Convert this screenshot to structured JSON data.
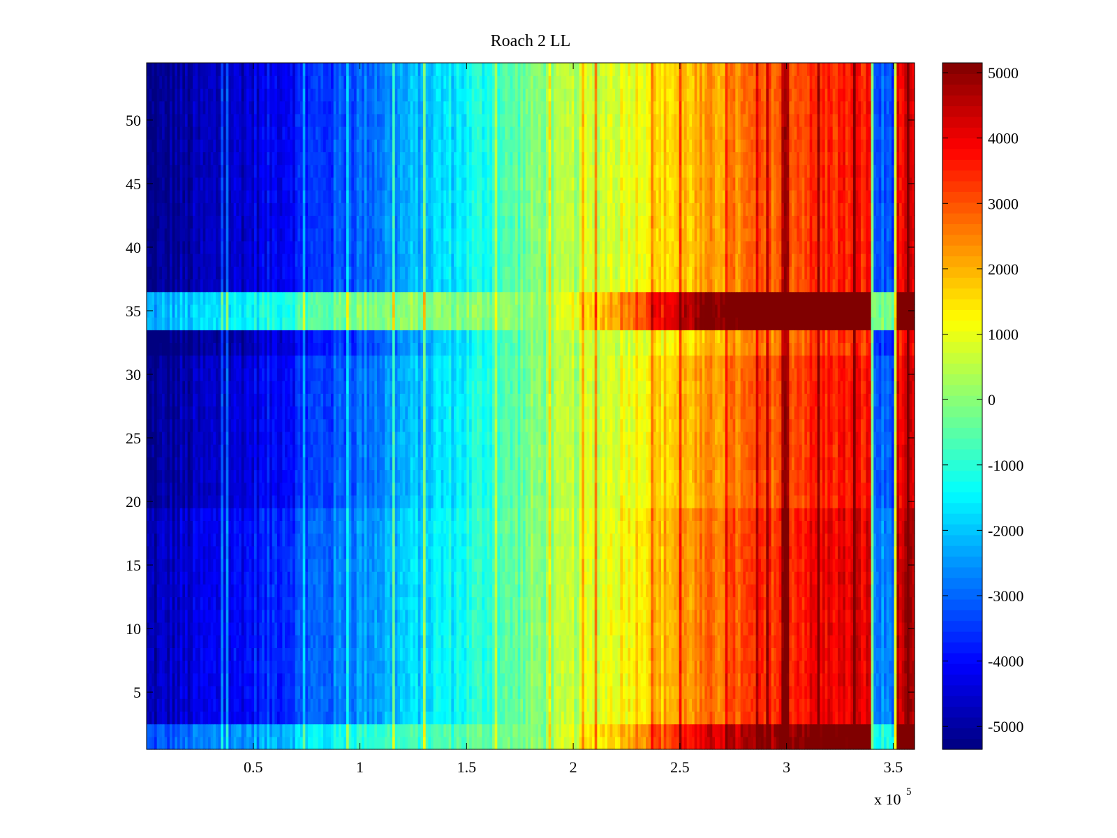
{
  "chart_data": {
    "type": "heatmap",
    "title": "Roach 2 LL",
    "xlabel": "",
    "ylabel": "",
    "x_multiplier_label": "x 10",
    "x_multiplier_exponent": "5",
    "x_range": [
      0,
      360000
    ],
    "y_range": [
      0.5,
      54.5
    ],
    "rows": 54,
    "x_ticks": [
      {
        "value": 50000,
        "label": "0.5"
      },
      {
        "value": 100000,
        "label": "1"
      },
      {
        "value": 150000,
        "label": "1.5"
      },
      {
        "value": 200000,
        "label": "2"
      },
      {
        "value": 250000,
        "label": "2.5"
      },
      {
        "value": 300000,
        "label": "3"
      },
      {
        "value": 350000,
        "label": "3.5"
      }
    ],
    "y_ticks": [
      {
        "value": 5,
        "label": "5"
      },
      {
        "value": 10,
        "label": "10"
      },
      {
        "value": 15,
        "label": "15"
      },
      {
        "value": 20,
        "label": "20"
      },
      {
        "value": 25,
        "label": "25"
      },
      {
        "value": 30,
        "label": "30"
      },
      {
        "value": 35,
        "label": "35"
      },
      {
        "value": 40,
        "label": "40"
      },
      {
        "value": 45,
        "label": "45"
      },
      {
        "value": 50,
        "label": "50"
      }
    ],
    "colorbar": {
      "colormap": "jet",
      "range": [
        -5350,
        5150
      ],
      "ticks": [
        {
          "value": 5000,
          "label": "5000"
        },
        {
          "value": 4000,
          "label": "4000"
        },
        {
          "value": 3000,
          "label": "3000"
        },
        {
          "value": 2000,
          "label": "2000"
        },
        {
          "value": 1000,
          "label": "1000"
        },
        {
          "value": 0,
          "label": "0"
        },
        {
          "value": -1000,
          "label": "-1000"
        },
        {
          "value": -2000,
          "label": "-2000"
        },
        {
          "value": -3000,
          "label": "-3000"
        },
        {
          "value": -4000,
          "label": "-4000"
        },
        {
          "value": -5000,
          "label": "-5000"
        }
      ]
    },
    "trend_profile": [
      [
        0,
        -4900
      ],
      [
        20000,
        -4500
      ],
      [
        50000,
        -3900
      ],
      [
        100000,
        -2500
      ],
      [
        150000,
        -1200
      ],
      [
        200000,
        500
      ],
      [
        250000,
        2200
      ],
      [
        300000,
        3600
      ],
      [
        320000,
        4000
      ],
      [
        339000,
        4100
      ],
      [
        341000,
        -2700
      ],
      [
        350000,
        -2700
      ],
      [
        352000,
        4400
      ],
      [
        360000,
        4400
      ]
    ],
    "row_groups": [
      {
        "rows": [
          1,
          2
        ],
        "offset": 1500
      },
      {
        "rows": [
          3,
          19
        ],
        "offset": 0
      },
      {
        "rows": [
          20,
          31
        ],
        "offset": -400
      },
      {
        "rows": [
          32,
          33
        ],
        "offset": -800
      },
      {
        "rows": [
          34,
          36
        ],
        "offset": 2500
      },
      {
        "rows": [
          37,
          54
        ],
        "offset": -500
      }
    ]
  }
}
